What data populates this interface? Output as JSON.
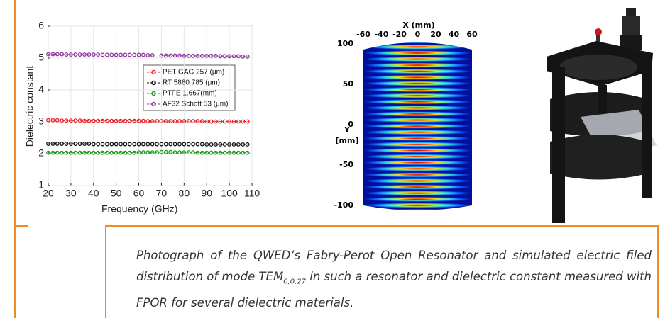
{
  "chart_data": {
    "type": "line",
    "xlabel": "Frequency (GHz)",
    "ylabel": "Dielectric constant",
    "x": [
      20,
      22,
      24,
      26,
      28,
      30,
      32,
      34,
      36,
      38,
      40,
      42,
      44,
      46,
      48,
      50,
      52,
      54,
      56,
      58,
      60,
      62,
      64,
      66,
      68,
      70,
      72,
      74,
      76,
      78,
      80,
      82,
      84,
      86,
      88,
      90,
      92,
      94,
      96,
      98,
      100,
      102,
      104,
      106,
      108
    ],
    "series": [
      {
        "name": "PET GAG 257 (μm)",
        "color": "#e8262a",
        "values": [
          3.05,
          3.05,
          3.05,
          3.04,
          3.04,
          3.04,
          3.04,
          3.04,
          3.03,
          3.03,
          3.03,
          3.03,
          3.03,
          3.03,
          3.03,
          3.03,
          3.03,
          3.03,
          3.03,
          3.03,
          3.03,
          3.03,
          3.02,
          3.02,
          3.02,
          3.02,
          3.02,
          3.02,
          3.02,
          3.02,
          3.02,
          3.02,
          3.02,
          3.02,
          3.02,
          3.01,
          3.01,
          3.01,
          3.01,
          3.01,
          3.01,
          3.01,
          3.01,
          3.01,
          3.01
        ]
      },
      {
        "name": "RT 5880 785 (μm)",
        "color": "#111111",
        "values": [
          2.31,
          2.31,
          2.31,
          2.31,
          2.31,
          2.31,
          2.31,
          2.31,
          2.31,
          2.31,
          2.3,
          2.3,
          2.3,
          2.3,
          2.3,
          2.3,
          2.3,
          2.3,
          2.3,
          2.3,
          2.3,
          2.3,
          2.3,
          2.3,
          2.3,
          2.3,
          2.3,
          2.3,
          2.3,
          2.3,
          2.3,
          2.3,
          2.3,
          2.3,
          2.3,
          2.29,
          2.29,
          2.29,
          2.29,
          2.29,
          2.29,
          2.29,
          2.29,
          2.29,
          2.29
        ]
      },
      {
        "name": "PTFE 1.667(mm)",
        "color": "#1a9a1a",
        "values": [
          2.03,
          2.03,
          2.03,
          2.03,
          2.03,
          2.03,
          2.03,
          2.03,
          2.03,
          2.03,
          2.03,
          2.03,
          2.03,
          2.03,
          2.03,
          2.03,
          2.03,
          2.03,
          2.03,
          2.03,
          2.04,
          2.04,
          2.04,
          2.04,
          2.04,
          2.05,
          2.05,
          2.05,
          2.04,
          2.04,
          2.04,
          2.04,
          2.04,
          2.03,
          2.03,
          2.03,
          2.03,
          2.03,
          2.03,
          2.03,
          2.03,
          2.03,
          2.03,
          2.03,
          2.03
        ]
      },
      {
        "name": "AF32 Schott 53 (μm)",
        "color": "#8e3a9e",
        "values": [
          5.12,
          5.12,
          5.12,
          5.12,
          5.11,
          5.11,
          5.11,
          5.11,
          5.11,
          5.11,
          5.11,
          5.11,
          5.1,
          5.1,
          5.1,
          5.1,
          5.1,
          5.1,
          5.1,
          5.1,
          5.1,
          5.1,
          5.09,
          5.09,
          null,
          5.08,
          5.08,
          5.08,
          5.08,
          5.08,
          5.07,
          5.07,
          5.07,
          5.07,
          5.07,
          5.07,
          5.07,
          5.07,
          5.06,
          5.06,
          5.06,
          5.06,
          5.06,
          5.05,
          5.05
        ]
      }
    ],
    "xlim": [
      20,
      110
    ],
    "xticks": [
      20,
      30,
      40,
      50,
      60,
      70,
      80,
      90,
      100,
      110
    ],
    "ylim": [
      1,
      6
    ],
    "yticks": [
      1,
      2,
      3,
      4,
      5,
      6
    ],
    "grid": true,
    "legend": "upper right"
  },
  "simulation": {
    "xlabel": "X (mm)",
    "ylabel": [
      "Y",
      "[mm]"
    ],
    "xlim": [
      -60,
      60
    ],
    "xticks": [
      -60,
      -40,
      -20,
      0,
      20,
      40,
      60
    ],
    "ylim": [
      -100,
      100
    ],
    "yticks": [
      100,
      50,
      0,
      -50,
      -100
    ]
  },
  "caption": {
    "text": "Photograph of the QWED’s Fabry-Perot Open Resonator and simulated electric filed distribution of mode TEM",
    "subscript": "0,0,27",
    "text_end": " in such a resonator and dielectric constant measured with FPOR for several dielectric materials."
  }
}
